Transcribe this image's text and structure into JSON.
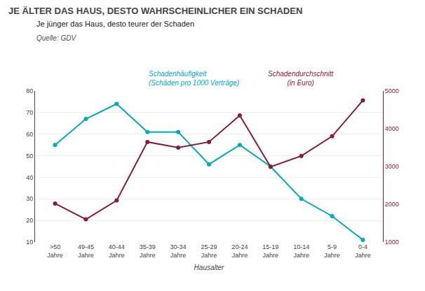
{
  "chart_data": {
    "type": "line",
    "title": "JE ÄLTER DAS HAUS, DESTO WAHRSCHEINLICHER EIN SCHADEN",
    "subtitle": "Je jünger das Haus, desto teurer der Schaden",
    "source": "Quelle: GDV",
    "x_label": "Hausalter",
    "categories": [
      ">50\nJahre",
      "49-45\nJahre",
      "40-44\nJahre",
      "35-39\nJahre",
      "30-34\nJahre",
      "25-29\nJahre",
      "20-24\nJahre",
      "15-19\nJahre",
      "10-14\nJahre",
      "5-9\nJahre",
      "0-4\nJahre"
    ],
    "series": [
      {
        "color": "#00AABF",
        "axis": "y",
        "values": [
          55,
          67,
          74,
          61,
          61,
          46,
          55,
          45,
          30,
          22,
          11
        ]
      },
      {
        "color": "#8B1A3A",
        "axis": "y2",
        "values": [
          2020,
          1600,
          2100,
          3650,
          3500,
          3650,
          4350,
          2990,
          3280,
          3800,
          4750
        ]
      }
    ],
    "annotations": [
      "Schadenhäufigkeit\n(Schäden pro 1000 Verträge)",
      "Schadendurchschnitt\n(in Euro)"
    ],
    "ylim": [
      10,
      80
    ],
    "yticks": [
      10,
      20,
      30,
      40,
      50,
      60,
      70,
      80
    ],
    "y2lim": [
      1000,
      5000
    ],
    "y2ticks": [
      1000,
      2000,
      3000,
      4000,
      5000
    ],
    "grid": true,
    "marker": "circle",
    "line_style": "solid"
  }
}
